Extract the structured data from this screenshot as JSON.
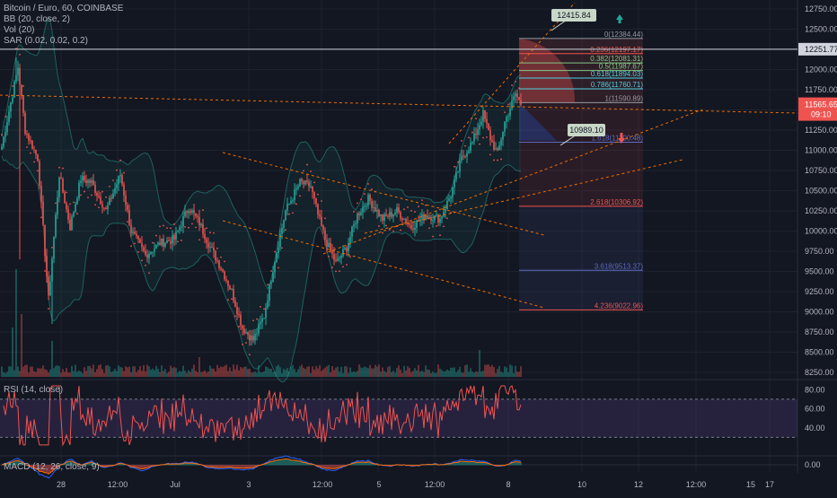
{
  "colors": {
    "background": "#131722",
    "up": "#26a69a",
    "down": "#ef5350",
    "grid": "#1e222d",
    "text": "#b2b5be",
    "sar": "#ef5350",
    "bb": "#26a69a",
    "fib_band": "#ef5350",
    "rsi_band": "#7e57c2",
    "macd": "#2962ff",
    "signal": "#ff6d00",
    "price_white": "#d1d4dc"
  },
  "legend": {
    "line1": "Bitcoin / Euro, 60, COINBASE",
    "line2": "BB (20, close, 2)",
    "line3": "Vol (20)",
    "line4": "SAR (0.02, 0.02, 0.2)"
  },
  "rsi": {
    "label": "RSI (14, close)"
  },
  "macd": {
    "label": "MACD (12, 26, close, 9)"
  },
  "price_axis": {
    "ticks": [
      "12750.00",
      "12500.00",
      "12251.77",
      "12000.00",
      "11750.00",
      "11565.65",
      "09:10",
      "11250.00",
      "11000.00",
      "10750.00",
      "10500.00",
      "10250.00",
      "10000.00",
      "9750.00",
      "9500.00",
      "9250.00",
      "9000.00",
      "8750.00",
      "8500.00",
      "8250.00"
    ],
    "current_price": "11565.65",
    "countdown": "09:10",
    "horizontal_line": "12251.77",
    "rsi_ticks": [
      "80.00",
      "60.00",
      "40.00"
    ],
    "macd_tick": "0.00"
  },
  "time_axis": {
    "ticks": [
      "28",
      "12:00",
      "Jul",
      "3",
      "12:00",
      "5",
      "12:00",
      "8",
      "10",
      "12",
      "12:00",
      "15",
      "17"
    ]
  },
  "callouts": {
    "high": "12415.84",
    "low": "10989.10"
  },
  "fib_levels": [
    {
      "label": "0(12384.44)",
      "price": 12384.44
    },
    {
      "label": "0.236(12197.17)",
      "price": 12197.17
    },
    {
      "label": "0.382(12081.31)",
      "price": 12081.31
    },
    {
      "label": "0.5(11987.67)",
      "price": 11987.67
    },
    {
      "label": "0.618(11894.03)",
      "price": 11894.03
    },
    {
      "label": "0.786(11760.71)",
      "price": 11760.71
    },
    {
      "label": "1(11590.89)",
      "price": 11590.89
    },
    {
      "label": "1.618(11100.48)",
      "price": 11100.48
    },
    {
      "label": "2.618(10306.92)",
      "price": 10306.92
    },
    {
      "label": "3.618(9513.37)",
      "price": 9513.37
    },
    {
      "label": "4.236(9022.96)",
      "price": 9022.96
    }
  ],
  "chart_data": {
    "type": "candlestick",
    "title": "Bitcoin / Euro, 60, COINBASE",
    "ylim": [
      8100,
      12800
    ],
    "x_ticks": [
      "28",
      "12:00",
      "Jul",
      "3",
      "12:00",
      "5",
      "12:00",
      "8",
      "10",
      "12",
      "12:00",
      "15",
      "17"
    ],
    "anchors": [
      {
        "i": 0,
        "p": 11050
      },
      {
        "i": 6,
        "p": 11700
      },
      {
        "i": 9,
        "p": 12030
      },
      {
        "i": 13,
        "p": 11250
      },
      {
        "i": 20,
        "p": 10900
      },
      {
        "i": 26,
        "p": 9150
      },
      {
        "i": 32,
        "p": 10700
      },
      {
        "i": 38,
        "p": 10050
      },
      {
        "i": 44,
        "p": 10650
      },
      {
        "i": 50,
        "p": 10600
      },
      {
        "i": 58,
        "p": 10250
      },
      {
        "i": 66,
        "p": 10700
      },
      {
        "i": 72,
        "p": 10000
      },
      {
        "i": 80,
        "p": 9700
      },
      {
        "i": 88,
        "p": 9850
      },
      {
        "i": 96,
        "p": 9900
      },
      {
        "i": 104,
        "p": 10300
      },
      {
        "i": 110,
        "p": 10100
      },
      {
        "i": 116,
        "p": 9800
      },
      {
        "i": 122,
        "p": 9550
      },
      {
        "i": 128,
        "p": 9250
      },
      {
        "i": 134,
        "p": 8800
      },
      {
        "i": 140,
        "p": 8650
      },
      {
        "i": 146,
        "p": 8950
      },
      {
        "i": 152,
        "p": 9650
      },
      {
        "i": 158,
        "p": 10250
      },
      {
        "i": 166,
        "p": 10600
      },
      {
        "i": 172,
        "p": 10550
      },
      {
        "i": 176,
        "p": 10200
      },
      {
        "i": 180,
        "p": 9900
      },
      {
        "i": 186,
        "p": 9600
      },
      {
        "i": 192,
        "p": 9800
      },
      {
        "i": 198,
        "p": 10200
      },
      {
        "i": 204,
        "p": 10400
      },
      {
        "i": 212,
        "p": 10150
      },
      {
        "i": 220,
        "p": 10250
      },
      {
        "i": 228,
        "p": 10050
      },
      {
        "i": 236,
        "p": 10200
      },
      {
        "i": 244,
        "p": 10150
      },
      {
        "i": 250,
        "p": 10450
      },
      {
        "i": 256,
        "p": 10900
      },
      {
        "i": 262,
        "p": 11100
      },
      {
        "i": 268,
        "p": 11450
      },
      {
        "i": 272,
        "p": 11150
      },
      {
        "i": 276,
        "p": 10950
      },
      {
        "i": 280,
        "p": 11350
      },
      {
        "i": 286,
        "p": 11700
      },
      {
        "i": 289,
        "p": 11565
      }
    ]
  }
}
